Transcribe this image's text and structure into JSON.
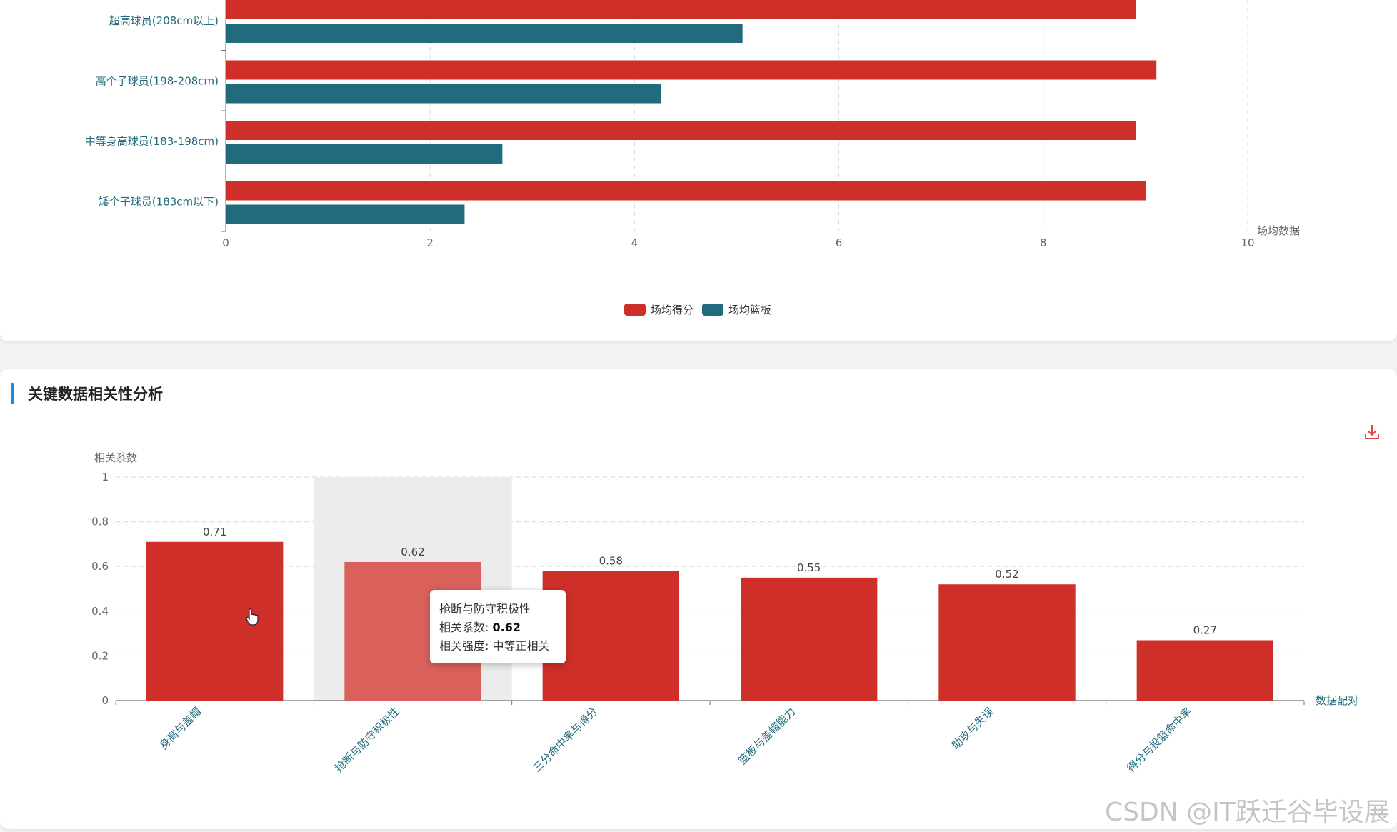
{
  "top_chart": {
    "chart_data": {
      "type": "bar",
      "orientation": "horizontal",
      "categories": [
        "超高球员(208cm以上)",
        "高个子球员(198-208cm)",
        "中等身高球员(183-198cm)",
        "矮个子球员(183cm以下)"
      ],
      "series": [
        {
          "name": "场均得分",
          "color": "#cf2f29",
          "values": [
            8.9,
            9.1,
            8.9,
            9.0
          ]
        },
        {
          "name": "场均篮板",
          "color": "#216b7c",
          "values": [
            5.05,
            4.25,
            2.7,
            2.33
          ]
        }
      ],
      "xlabel": "场均数据",
      "xlim": [
        0,
        10
      ],
      "xticks": [
        "0",
        "2",
        "4",
        "6",
        "8",
        "10"
      ],
      "grid": true,
      "legend_position": "bottom-center"
    }
  },
  "section": {
    "title": "关键数据相关性分析"
  },
  "bottom_chart": {
    "chart_data": {
      "type": "bar",
      "categories": [
        "身高与盖帽",
        "抢断与防守积极性",
        "三分命中率与得分",
        "篮板与盖帽能力",
        "助攻与失误",
        "得分与投篮命中率"
      ],
      "values": [
        0.71,
        0.62,
        0.58,
        0.55,
        0.52,
        0.27
      ],
      "value_labels": [
        "0.71",
        "0.62",
        "0.58",
        "0.55",
        "0.52",
        "0.27"
      ],
      "ylabel": "相关系数",
      "xlabel": "数据配对",
      "ylim": [
        0,
        1
      ],
      "yticks": [
        "0",
        "0.2",
        "0.4",
        "0.6",
        "0.8",
        "1"
      ],
      "color": "#cf2f29",
      "highlight_color": "#da615b",
      "highlighted_index": 1,
      "grid": true
    }
  },
  "tooltip": {
    "title": "抢断与防守积极性",
    "coef_label": "相关系数:",
    "coef_value": "0.62",
    "strength_label": "相关强度:",
    "strength_value": "中等正相关"
  },
  "icons": {
    "download": "download-icon"
  },
  "watermark": "CSDN @IT跃迁谷毕设展"
}
